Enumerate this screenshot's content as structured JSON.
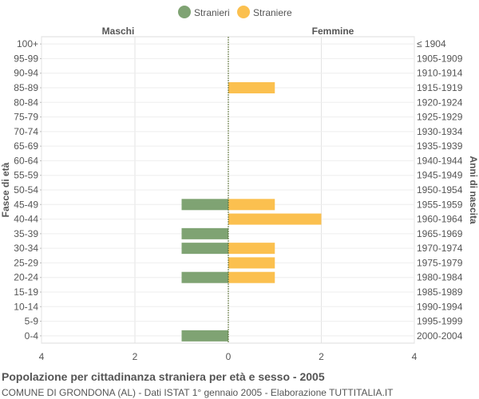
{
  "chart_data": {
    "type": "bar",
    "orientation": "horizontal-population-pyramid",
    "title": "Popolazione per cittadinanza straniera per età e sesso - 2005",
    "subtitle": "COMUNE DI GRONDONA (AL) - Dati ISTAT 1° gennaio 2005 - Elaborazione TUTTITALIA.IT",
    "ylabel_left": "Fasce di età",
    "ylabel_right": "Anni di nascita",
    "side_labels": {
      "left": "Maschi",
      "right": "Femmine"
    },
    "legend_position": "top-center",
    "grid": true,
    "xlim": [
      -4,
      4
    ],
    "x_ticks": [
      {
        "value": -4,
        "label": "4"
      },
      {
        "value": -2,
        "label": "2"
      },
      {
        "value": 0,
        "label": "0"
      },
      {
        "value": 2,
        "label": "2"
      },
      {
        "value": 4,
        "label": "4"
      }
    ],
    "categories": [
      "100+",
      "95-99",
      "90-94",
      "85-89",
      "80-84",
      "75-79",
      "70-74",
      "65-69",
      "60-64",
      "55-59",
      "50-54",
      "45-49",
      "40-44",
      "35-39",
      "30-34",
      "25-29",
      "20-24",
      "15-19",
      "10-14",
      "5-9",
      "0-4"
    ],
    "birth_years": [
      "≤ 1904",
      "1905-1909",
      "1910-1914",
      "1915-1919",
      "1920-1924",
      "1925-1929",
      "1930-1934",
      "1935-1939",
      "1940-1944",
      "1945-1949",
      "1950-1954",
      "1955-1959",
      "1960-1964",
      "1965-1969",
      "1970-1974",
      "1975-1979",
      "1980-1984",
      "1985-1989",
      "1990-1994",
      "1995-1999",
      "2000-2004"
    ],
    "series": [
      {
        "name": "Stranieri",
        "side": "left",
        "color": "#7fa373",
        "values": [
          0,
          0,
          0,
          0,
          0,
          0,
          0,
          0,
          0,
          0,
          0,
          1,
          0,
          1,
          1,
          0,
          1,
          0,
          0,
          0,
          1
        ]
      },
      {
        "name": "Straniere",
        "side": "right",
        "color": "#fbc04f",
        "values": [
          0,
          0,
          0,
          1,
          0,
          0,
          0,
          0,
          0,
          0,
          0,
          1,
          2,
          0,
          1,
          1,
          1,
          0,
          0,
          0,
          0
        ]
      }
    ]
  }
}
